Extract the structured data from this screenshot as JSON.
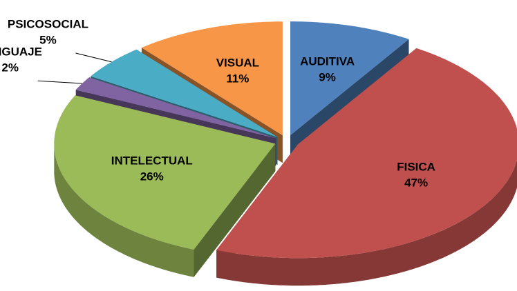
{
  "chart_data": {
    "type": "pie",
    "categories": [
      "AUDITIVA",
      "FISICA",
      "INTELECTUAL",
      "LENGUAJE",
      "PSICOSOCIAL",
      "VISUAL"
    ],
    "values": [
      9,
      47,
      26,
      2,
      5,
      11
    ],
    "value_labels": [
      "9%",
      "47%",
      "26%",
      "2%",
      "5%",
      "11%"
    ],
    "colors": [
      "#4f81bd",
      "#c0504d",
      "#9bbb59",
      "#8064a2",
      "#4bacc6",
      "#f79646"
    ]
  }
}
